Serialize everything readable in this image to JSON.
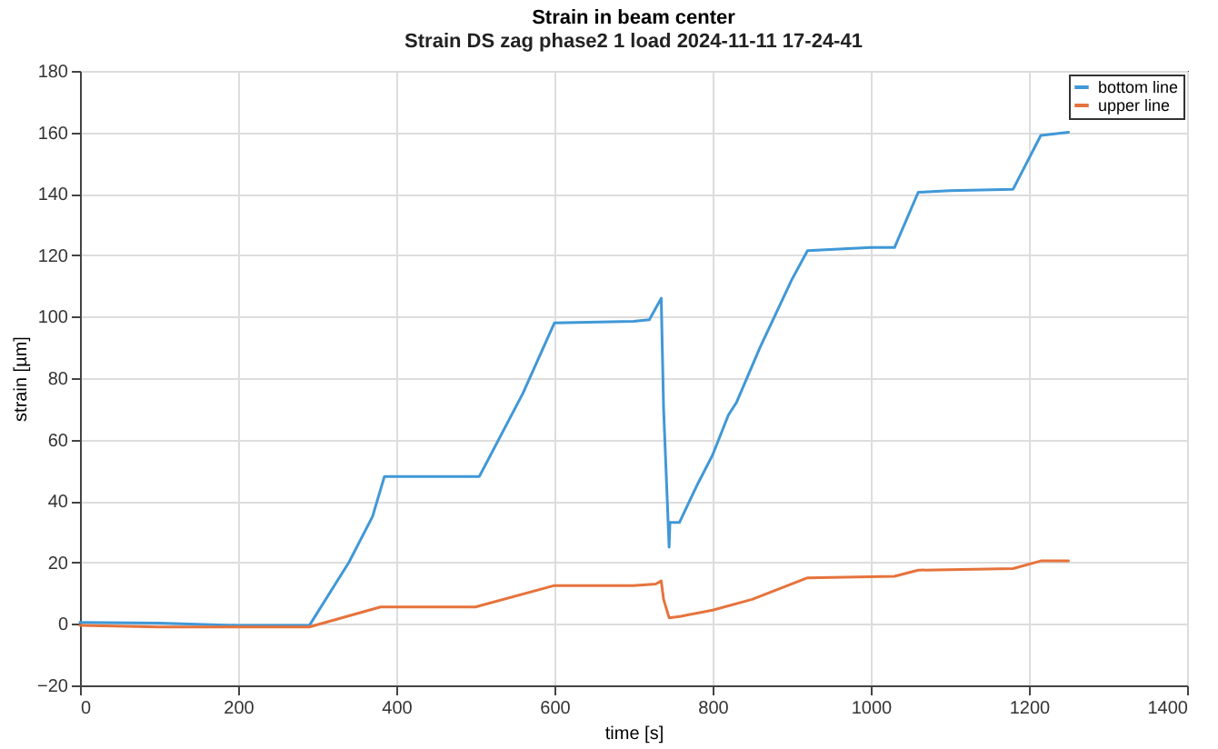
{
  "chart_data": {
    "type": "line",
    "title": "Strain in beam center",
    "subtitle": "Strain DS zag phase2 1 load 2024-11-11 17-24-41",
    "xlabel": "time [s]",
    "ylabel": "strain [µm]",
    "xlim": [
      0,
      1400
    ],
    "xticks": [
      0,
      200,
      400,
      600,
      800,
      1000,
      1200,
      1400
    ],
    "ylim": [
      -20,
      180
    ],
    "yticks": [
      -20,
      0,
      20,
      40,
      60,
      80,
      100,
      120,
      140,
      160,
      180
    ],
    "grid": true,
    "legend": "top right",
    "series": [
      {
        "name": "bottom line",
        "color": "#4098d7",
        "x": [
          0,
          100,
          200,
          290,
          340,
          370,
          385,
          500,
          505,
          560,
          600,
          700,
          720,
          735,
          738,
          745,
          746,
          758,
          780,
          800,
          820,
          830,
          860,
          900,
          920,
          1000,
          1030,
          1060,
          1100,
          1180,
          1215,
          1250
        ],
        "values": [
          0.5,
          0.3,
          -0.5,
          -0.5,
          20,
          35,
          48,
          48,
          48,
          75,
          98,
          98.5,
          99,
          106,
          70,
          25,
          33,
          33,
          45,
          55,
          68,
          72,
          90,
          112,
          121.5,
          122.5,
          122.5,
          140.5,
          141,
          141.5,
          159,
          160
        ]
      },
      {
        "name": "upper line",
        "color": "#e6733c",
        "x": [
          0,
          100,
          290,
          380,
          500,
          600,
          700,
          728,
          735,
          738,
          745,
          760,
          800,
          850,
          920,
          1030,
          1060,
          1180,
          1215,
          1250
        ],
        "values": [
          -0.5,
          -1,
          -1,
          5.5,
          5.5,
          12.5,
          12.5,
          13,
          14,
          8,
          2,
          2.5,
          4.5,
          8,
          15,
          15.5,
          17.5,
          18,
          20.5,
          20.5
        ]
      }
    ]
  }
}
